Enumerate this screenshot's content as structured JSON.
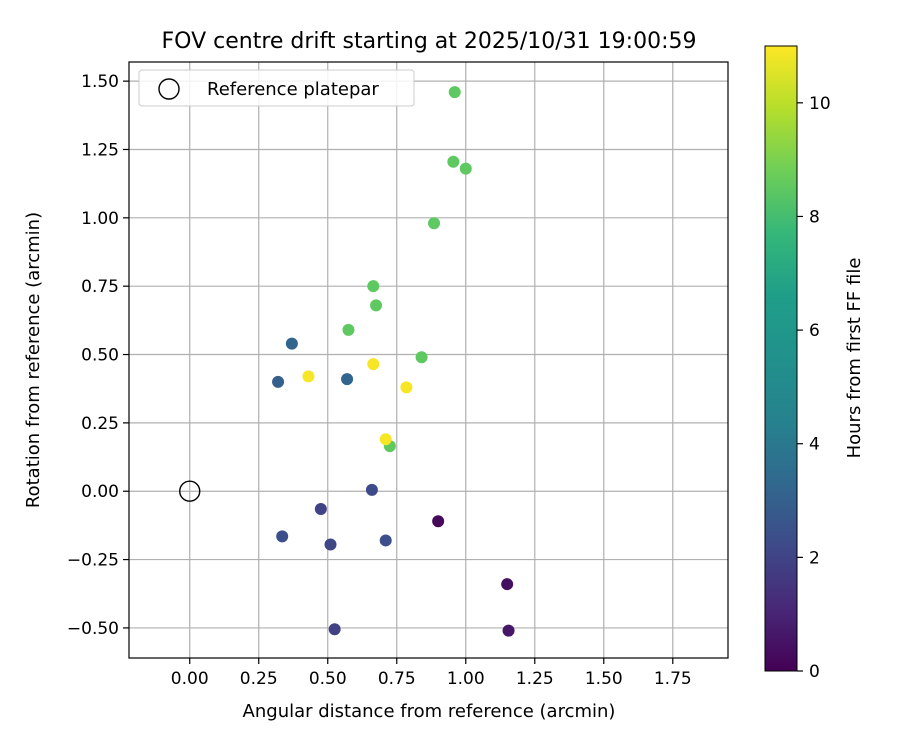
{
  "chart_data": {
    "type": "scatter",
    "title": "FOV centre drift starting at 2025/10/31 19:00:59",
    "xlabel": "Angular distance from reference (arcmin)",
    "ylabel": "Rotation from reference (arcmin)",
    "xlim": [
      -0.22,
      1.95
    ],
    "ylim": [
      -0.61,
      1.57
    ],
    "xticks": [
      0.0,
      0.25,
      0.5,
      0.75,
      1.0,
      1.25,
      1.5,
      1.75
    ],
    "xtick_labels": [
      "0.00",
      "0.25",
      "0.50",
      "0.75",
      "1.00",
      "1.25",
      "1.50",
      "1.75"
    ],
    "yticks": [
      -0.5,
      -0.25,
      0.0,
      0.25,
      0.5,
      0.75,
      1.0,
      1.25,
      1.5
    ],
    "ytick_labels": [
      "−0.50",
      "−0.25",
      "0.00",
      "0.25",
      "0.50",
      "0.75",
      "1.00",
      "1.25",
      "1.50"
    ],
    "grid": true,
    "legend": {
      "position": "top-left",
      "entries": [
        "Reference platepar"
      ]
    },
    "reference_point": {
      "x": 0.0,
      "y": 0.0,
      "label": "Reference platepar"
    },
    "colorbar": {
      "label": "Hours from first FF file",
      "range": [
        0,
        11
      ],
      "ticks": [
        0,
        2,
        4,
        6,
        8,
        10
      ],
      "tick_labels": [
        "0",
        "2",
        "4",
        "6",
        "8",
        "10"
      ],
      "colormap": "viridis"
    },
    "points": [
      {
        "x": 0.9,
        "y": -0.11,
        "hours": 0.2
      },
      {
        "x": 1.15,
        "y": -0.34,
        "hours": 0.4
      },
      {
        "x": 1.155,
        "y": -0.51,
        "hours": 0.6
      },
      {
        "x": 0.525,
        "y": -0.505,
        "hours": 1.9
      },
      {
        "x": 0.475,
        "y": -0.065,
        "hours": 2.0
      },
      {
        "x": 0.51,
        "y": -0.195,
        "hours": 2.1
      },
      {
        "x": 0.66,
        "y": 0.005,
        "hours": 2.2
      },
      {
        "x": 0.335,
        "y": -0.165,
        "hours": 2.4
      },
      {
        "x": 0.71,
        "y": -0.18,
        "hours": 2.4
      },
      {
        "x": 0.32,
        "y": 0.4,
        "hours": 3.0
      },
      {
        "x": 0.37,
        "y": 0.54,
        "hours": 3.2
      },
      {
        "x": 0.57,
        "y": 0.41,
        "hours": 3.2
      },
      {
        "x": 0.96,
        "y": 1.46,
        "hours": 8.5
      },
      {
        "x": 0.955,
        "y": 1.205,
        "hours": 8.5
      },
      {
        "x": 1.0,
        "y": 1.18,
        "hours": 8.5
      },
      {
        "x": 0.885,
        "y": 0.98,
        "hours": 8.5
      },
      {
        "x": 0.665,
        "y": 0.75,
        "hours": 8.5
      },
      {
        "x": 0.675,
        "y": 0.68,
        "hours": 8.5
      },
      {
        "x": 0.575,
        "y": 0.59,
        "hours": 8.5
      },
      {
        "x": 0.84,
        "y": 0.49,
        "hours": 8.5
      },
      {
        "x": 0.725,
        "y": 0.165,
        "hours": 8.5
      },
      {
        "x": 0.43,
        "y": 0.42,
        "hours": 10.9
      },
      {
        "x": 0.665,
        "y": 0.465,
        "hours": 10.9
      },
      {
        "x": 0.785,
        "y": 0.38,
        "hours": 10.9
      },
      {
        "x": 0.71,
        "y": 0.19,
        "hours": 10.9
      }
    ]
  }
}
